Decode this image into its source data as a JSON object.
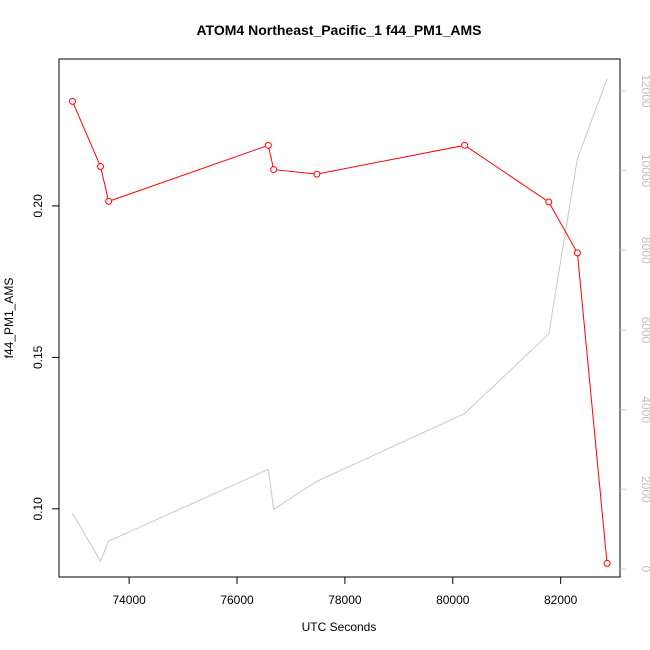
{
  "chart_data": {
    "type": "line",
    "title": "ATOM4 Northeast_Pacific_1 f44_PM1_AMS",
    "xlabel": "UTC Seconds",
    "ylabel": "f44_PM1_AMS",
    "y2label": "",
    "xlim": [
      72700,
      83100
    ],
    "ylim": [
      0.0775,
      0.2485
    ],
    "y2lim": [
      -200,
      12800
    ],
    "x_ticks": [
      74000,
      76000,
      78000,
      80000,
      82000
    ],
    "y_ticks": [
      0.1,
      0.15,
      0.2
    ],
    "y_tick_labels": [
      "0.10",
      "0.15",
      "0.20"
    ],
    "y2_ticks": [
      0,
      2000,
      4000,
      6000,
      8000,
      10000,
      12000
    ],
    "grid": false,
    "legend": "none",
    "colors": {
      "primary": "#ff0000",
      "secondary": "#c8c8c8"
    },
    "series": [
      {
        "axis": "left",
        "style": "line-with-open-circles",
        "x": [
          72950,
          73470,
          73620,
          76580,
          76680,
          77480,
          80220,
          81780,
          82310,
          82860
        ],
        "y": [
          0.2345,
          0.213,
          0.2015,
          0.22,
          0.212,
          0.2105,
          0.22,
          0.2013,
          0.1845,
          0.082
        ]
      },
      {
        "axis": "right",
        "style": "line",
        "x": [
          72950,
          73470,
          73620,
          76580,
          76680,
          77480,
          80220,
          81780,
          82310,
          82860
        ],
        "y": [
          1400,
          200,
          700,
          2500,
          1500,
          2200,
          3900,
          5900,
          10300,
          12300
        ]
      }
    ]
  }
}
